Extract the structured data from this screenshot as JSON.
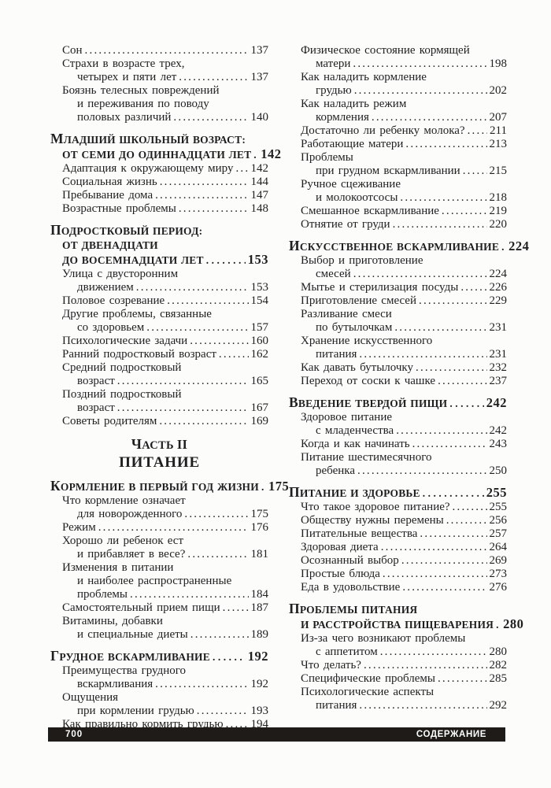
{
  "colors": {
    "background": "#fcfcfb",
    "text": "#1f1f1f",
    "footer_bg": "#1e1b19",
    "footer_text": "#ffffff"
  },
  "footer": {
    "page_number": "700",
    "title": "СОДЕРЖАНИЕ"
  },
  "toc": {
    "columns": [
      {
        "side": "left",
        "blocks": [
          {
            "type": "entries",
            "entries": [
              {
                "lines": [
                  {
                    "text": "Сон",
                    "page": "137"
                  }
                ]
              },
              {
                "lines": [
                  {
                    "text": "Страхи в возрасте трех,"
                  },
                  {
                    "text": "четырех и пяти лет",
                    "page": "137",
                    "wrap": true
                  }
                ]
              },
              {
                "lines": [
                  {
                    "text": "Боязнь телесных повреждений"
                  },
                  {
                    "text": "и переживания по поводу",
                    "wrap": true
                  },
                  {
                    "text": "половых различий",
                    "page": "140",
                    "wrap": true
                  }
                ]
              }
            ]
          },
          {
            "type": "section",
            "heading": [
              {
                "text": "МЛАДШИЙ ШКОЛЬНЫЙ ВОЗРАСТ:"
              },
              {
                "text": "ОТ СЕМИ ДО ОДИННАДЦАТИ ЛЕТ",
                "page": "142"
              }
            ],
            "entries": [
              {
                "lines": [
                  {
                    "text": "Адаптация к окружающему миру",
                    "page": "142"
                  }
                ]
              },
              {
                "lines": [
                  {
                    "text": "Социальная жизнь",
                    "page": "144"
                  }
                ]
              },
              {
                "lines": [
                  {
                    "text": "Пребывание дома",
                    "page": "147"
                  }
                ]
              },
              {
                "lines": [
                  {
                    "text": "Возрастные проблемы",
                    "page": "148"
                  }
                ]
              }
            ]
          },
          {
            "type": "section",
            "heading": [
              {
                "text": "ПОДРОСТКОВЫЙ ПЕРИОД:"
              },
              {
                "text": "ОТ ДВЕНАДЦАТИ"
              },
              {
                "text": "ДО ВОСЕМНАДЦАТИ ЛЕТ",
                "page": "153"
              }
            ],
            "entries": [
              {
                "lines": [
                  {
                    "text": "Улица с двусторонним"
                  },
                  {
                    "text": "движением",
                    "page": "153",
                    "wrap": true
                  }
                ]
              },
              {
                "lines": [
                  {
                    "text": "Половое созревание",
                    "page": "154"
                  }
                ]
              },
              {
                "lines": [
                  {
                    "text": "Другие проблемы, связанные"
                  },
                  {
                    "text": "со здоровьем",
                    "page": "157",
                    "wrap": true
                  }
                ]
              },
              {
                "lines": [
                  {
                    "text": "Психологические задачи",
                    "page": "160"
                  }
                ]
              },
              {
                "lines": [
                  {
                    "text": "Ранний подростковый возраст",
                    "page": "162"
                  }
                ]
              },
              {
                "lines": [
                  {
                    "text": "Средний подростковый"
                  },
                  {
                    "text": "возраст",
                    "page": "165",
                    "wrap": true
                  }
                ]
              },
              {
                "lines": [
                  {
                    "text": "Поздний подростковый"
                  },
                  {
                    "text": "возраст",
                    "page": "167",
                    "wrap": true
                  }
                ]
              },
              {
                "lines": [
                  {
                    "text": "Советы родителям",
                    "page": "169"
                  }
                ]
              }
            ]
          },
          {
            "type": "part",
            "kicker": "ЧАСТЬ II",
            "title": "ПИТАНИЕ"
          },
          {
            "type": "section",
            "heading": [
              {
                "text": "КОРМЛЕНИЕ В ПЕРВЫЙ ГОД ЖИЗНИ",
                "page": "175"
              }
            ],
            "entries": [
              {
                "lines": [
                  {
                    "text": "Что кормление означает"
                  },
                  {
                    "text": "для новорожденного",
                    "page": "175",
                    "wrap": true
                  }
                ]
              },
              {
                "lines": [
                  {
                    "text": "Режим",
                    "page": "176"
                  }
                ]
              },
              {
                "lines": [
                  {
                    "text": "Хорошо ли ребенок ест"
                  },
                  {
                    "text": "и прибавляет в весе?",
                    "page": "181",
                    "wrap": true
                  }
                ]
              },
              {
                "lines": [
                  {
                    "text": "Изменения в питании"
                  },
                  {
                    "text": "и наиболее распространенные",
                    "wrap": true
                  },
                  {
                    "text": "проблемы",
                    "page": "184",
                    "wrap": true
                  }
                ]
              },
              {
                "lines": [
                  {
                    "text": "Самостоятельный прием пищи",
                    "page": "187"
                  }
                ]
              },
              {
                "lines": [
                  {
                    "text": "Витамины, добавки"
                  },
                  {
                    "text": "и специальные диеты",
                    "page": "189",
                    "wrap": true
                  }
                ]
              }
            ]
          },
          {
            "type": "section",
            "heading": [
              {
                "text": "ГРУДНОЕ ВСКАРМЛИВАНИЕ",
                "page": "192"
              }
            ],
            "entries": [
              {
                "lines": [
                  {
                    "text": "Преимущества грудного"
                  },
                  {
                    "text": "вскармливания",
                    "page": "192",
                    "wrap": true
                  }
                ]
              },
              {
                "lines": [
                  {
                    "text": "Ощущения"
                  },
                  {
                    "text": "при кормлении грудью",
                    "page": "193",
                    "wrap": true
                  }
                ]
              },
              {
                "lines": [
                  {
                    "text": "Как правильно кормить грудью",
                    "page": "194"
                  }
                ]
              }
            ]
          }
        ]
      },
      {
        "side": "right",
        "blocks": [
          {
            "type": "entries",
            "entries": [
              {
                "lines": [
                  {
                    "text": "Физическое состояние кормящей"
                  },
                  {
                    "text": "матери",
                    "page": "198",
                    "wrap": true
                  }
                ]
              },
              {
                "lines": [
                  {
                    "text": "Как наладить кормление"
                  },
                  {
                    "text": "грудью",
                    "page": "202",
                    "wrap": true
                  }
                ]
              },
              {
                "lines": [
                  {
                    "text": "Как наладить режим"
                  },
                  {
                    "text": "кормления",
                    "page": "207",
                    "wrap": true
                  }
                ]
              },
              {
                "lines": [
                  {
                    "text": "Достаточно ли ребенку молока?",
                    "page": "211"
                  }
                ]
              },
              {
                "lines": [
                  {
                    "text": "Работающие матери",
                    "page": "213"
                  }
                ]
              },
              {
                "lines": [
                  {
                    "text": "Проблемы"
                  },
                  {
                    "text": "при грудном вскармливании",
                    "page": "215",
                    "wrap": true
                  }
                ]
              },
              {
                "lines": [
                  {
                    "text": "Ручное сцеживание"
                  },
                  {
                    "text": "и молокоотсосы",
                    "page": "218",
                    "wrap": true
                  }
                ]
              },
              {
                "lines": [
                  {
                    "text": "Смешанное вскармливание",
                    "page": "219"
                  }
                ]
              },
              {
                "lines": [
                  {
                    "text": "Отнятие от груди",
                    "page": "220"
                  }
                ]
              }
            ]
          },
          {
            "type": "section",
            "heading": [
              {
                "text": "ИСКУССТВЕННОЕ ВСКАРМЛИВАНИЕ",
                "page": "224"
              }
            ],
            "entries": [
              {
                "lines": [
                  {
                    "text": "Выбор и приготовление"
                  },
                  {
                    "text": "смесей",
                    "page": "224",
                    "wrap": true
                  }
                ]
              },
              {
                "lines": [
                  {
                    "text": "Мытье и стерилизация посуды",
                    "page": "226"
                  }
                ]
              },
              {
                "lines": [
                  {
                    "text": "Приготовление смесей",
                    "page": "229"
                  }
                ]
              },
              {
                "lines": [
                  {
                    "text": "Разливание смеси"
                  },
                  {
                    "text": "по бутылочкам",
                    "page": "231",
                    "wrap": true
                  }
                ]
              },
              {
                "lines": [
                  {
                    "text": "Хранение искусственного"
                  },
                  {
                    "text": "питания",
                    "page": "231",
                    "wrap": true
                  }
                ]
              },
              {
                "lines": [
                  {
                    "text": "Как давать бутылочку",
                    "page": "232"
                  }
                ]
              },
              {
                "lines": [
                  {
                    "text": "Переход от соски к чашке",
                    "page": "237"
                  }
                ]
              }
            ]
          },
          {
            "type": "section",
            "heading": [
              {
                "text": "ВВЕДЕНИЕ ТВЕРДОЙ ПИЩИ",
                "page": "242"
              }
            ],
            "entries": [
              {
                "lines": [
                  {
                    "text": "Здоровое питание"
                  },
                  {
                    "text": "с младенчества",
                    "page": "242",
                    "wrap": true
                  }
                ]
              },
              {
                "lines": [
                  {
                    "text": "Когда и как начинать",
                    "page": "243"
                  }
                ]
              },
              {
                "lines": [
                  {
                    "text": "Питание шестимесячного"
                  },
                  {
                    "text": "ребенка",
                    "page": "250",
                    "wrap": true
                  }
                ]
              }
            ]
          },
          {
            "type": "section",
            "heading": [
              {
                "text": "ПИТАНИЕ И ЗДОРОВЬЕ",
                "page": "255"
              }
            ],
            "entries": [
              {
                "lines": [
                  {
                    "text": "Что такое здоровое питание?",
                    "page": "255"
                  }
                ]
              },
              {
                "lines": [
                  {
                    "text": "Обществу нужны перемены",
                    "page": "256"
                  }
                ]
              },
              {
                "lines": [
                  {
                    "text": "Питательные вещества",
                    "page": "257"
                  }
                ]
              },
              {
                "lines": [
                  {
                    "text": "Здоровая диета",
                    "page": "264"
                  }
                ]
              },
              {
                "lines": [
                  {
                    "text": "Осознанный выбор",
                    "page": "269"
                  }
                ]
              },
              {
                "lines": [
                  {
                    "text": "Простые блюда",
                    "page": "273"
                  }
                ]
              },
              {
                "lines": [
                  {
                    "text": "Еда в удовольствие",
                    "page": "276"
                  }
                ]
              }
            ]
          },
          {
            "type": "section",
            "heading": [
              {
                "text": "ПРОБЛЕМЫ ПИТАНИЯ"
              },
              {
                "text": "И РАССТРОЙСТВА ПИЩЕВАРЕНИЯ",
                "page": "280"
              }
            ],
            "entries": [
              {
                "lines": [
                  {
                    "text": "Из-за чего возникают проблемы"
                  },
                  {
                    "text": "с аппетитом",
                    "page": "280",
                    "wrap": true
                  }
                ]
              },
              {
                "lines": [
                  {
                    "text": "Что делать?",
                    "page": "282"
                  }
                ]
              },
              {
                "lines": [
                  {
                    "text": "Специфические проблемы",
                    "page": "285"
                  }
                ]
              },
              {
                "lines": [
                  {
                    "text": "Психологические аспекты"
                  },
                  {
                    "text": "питания",
                    "page": "292",
                    "wrap": true
                  }
                ]
              }
            ]
          }
        ]
      }
    ]
  }
}
